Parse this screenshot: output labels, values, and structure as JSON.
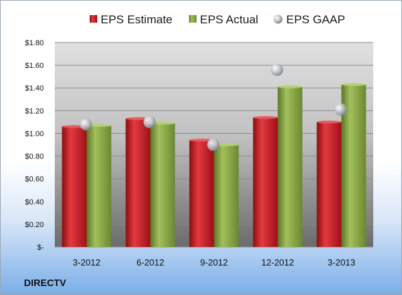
{
  "chart_data": {
    "type": "bar",
    "categories": [
      "3-2012",
      "6-2012",
      "9-2012",
      "12-2012",
      "3-2013"
    ],
    "series": [
      {
        "name": "EPS Estimate",
        "kind": "bar",
        "color": "#c0161d",
        "values": [
          1.06,
          1.13,
          0.94,
          1.14,
          1.1
        ]
      },
      {
        "name": "EPS Actual",
        "kind": "bar",
        "color": "#7d9c3a",
        "values": [
          1.07,
          1.09,
          0.9,
          1.41,
          1.43
        ]
      },
      {
        "name": "EPS GAAP",
        "kind": "point",
        "color": "#a9aeb3",
        "values": [
          1.08,
          1.1,
          0.9,
          1.56,
          1.21
        ]
      }
    ],
    "y_ticks": [
      "$-",
      "$0.20",
      "$0.40",
      "$0.60",
      "$0.80",
      "$1.00",
      "$1.20",
      "$1.40",
      "$1.60",
      "$1.80"
    ],
    "ylim": [
      0,
      1.8
    ],
    "grid": true,
    "legend_position": "top",
    "source": "DIRECTV"
  }
}
